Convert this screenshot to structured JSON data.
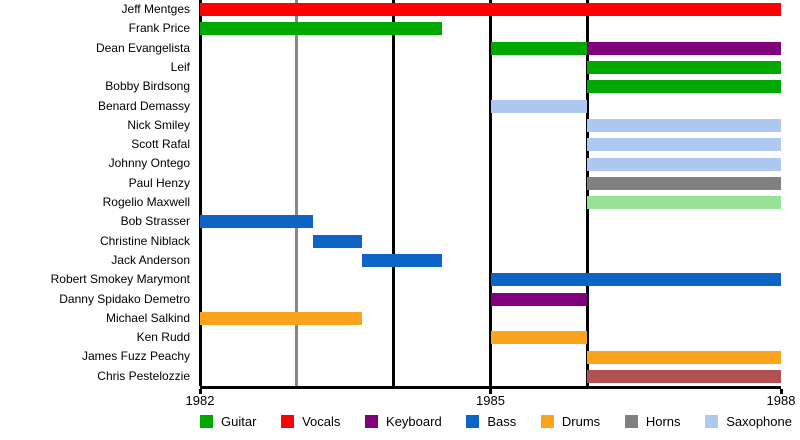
{
  "chart_data": {
    "type": "timeline",
    "description": "Band members timeline (Gantt-style) showing tenure per member colored by instrument",
    "x_axis": {
      "min": 1982,
      "max": 1988,
      "ticks": [
        1982,
        1985,
        1988
      ],
      "tick_labels": [
        "1982",
        "1985",
        "1988"
      ]
    },
    "gridlines": [
      {
        "year": 1982,
        "color": "#000000"
      },
      {
        "year": 1983,
        "color": "#878787"
      },
      {
        "year": 1984,
        "color": "#000000"
      },
      {
        "year": 1985,
        "color": "#000000"
      },
      {
        "year": 1986,
        "color": "#000000"
      }
    ],
    "legend_position": "bottom",
    "legend": [
      {
        "label": "Guitar",
        "color": "#00A800"
      },
      {
        "label": "Vocals",
        "color": "#FE0000"
      },
      {
        "label": "Keyboard",
        "color": "#800080"
      },
      {
        "label": "Bass",
        "color": "#0D63C6"
      },
      {
        "label": "Drums",
        "color": "#FAA41E"
      },
      {
        "label": "Horns",
        "color": "#808080"
      },
      {
        "label": "Saxophone",
        "color": "#ADC8F1"
      }
    ],
    "members": [
      {
        "name": "Jeff Mentges",
        "segments": [
          {
            "start": 1982,
            "end": 1988,
            "instrument": "Vocals",
            "color": "#FE0000"
          }
        ]
      },
      {
        "name": "Frank Price",
        "segments": [
          {
            "start": 1982,
            "end": 1984.5,
            "instrument": "Guitar",
            "color": "#00A800"
          }
        ]
      },
      {
        "name": "Dean Evangelista",
        "segments": [
          {
            "start": 1985,
            "end": 1986,
            "instrument": "Guitar",
            "color": "#00A800"
          },
          {
            "start": 1986,
            "end": 1988,
            "instrument": "Keyboard",
            "color": "#800080"
          }
        ]
      },
      {
        "name": "Leif",
        "segments": [
          {
            "start": 1986,
            "end": 1988,
            "instrument": "Guitar",
            "color": "#00A800"
          }
        ]
      },
      {
        "name": "Bobby Birdsong",
        "segments": [
          {
            "start": 1986,
            "end": 1988,
            "instrument": "Guitar",
            "color": "#00A800"
          }
        ]
      },
      {
        "name": "Benard Demassy",
        "segments": [
          {
            "start": 1985,
            "end": 1986,
            "instrument": "Saxophone",
            "color": "#ADC8F1"
          }
        ]
      },
      {
        "name": "Nick Smiley",
        "segments": [
          {
            "start": 1986,
            "end": 1988,
            "instrument": "Saxophone",
            "color": "#ADC8F1"
          }
        ]
      },
      {
        "name": "Scott Rafal",
        "segments": [
          {
            "start": 1986,
            "end": 1988,
            "instrument": "Saxophone",
            "color": "#ADC8F1"
          }
        ]
      },
      {
        "name": "Johnny Ontego",
        "segments": [
          {
            "start": 1986,
            "end": 1988,
            "instrument": "Saxophone",
            "color": "#ADC8F1"
          }
        ]
      },
      {
        "name": "Paul Henzy",
        "segments": [
          {
            "start": 1986,
            "end": 1988,
            "instrument": "Horns",
            "color": "#808080"
          }
        ]
      },
      {
        "name": "Rogelio Maxwell",
        "segments": [
          {
            "start": 1986,
            "end": 1988,
            "instrument": "",
            "color": "#97E297"
          }
        ]
      },
      {
        "name": "Bob Strasser",
        "segments": [
          {
            "start": 1982,
            "end": 1983.17,
            "instrument": "Bass",
            "color": "#0D63C6"
          }
        ]
      },
      {
        "name": "Christine Niblack",
        "segments": [
          {
            "start": 1983.17,
            "end": 1983.67,
            "instrument": "Bass",
            "color": "#0D63C6"
          }
        ]
      },
      {
        "name": "Jack Anderson",
        "segments": [
          {
            "start": 1983.67,
            "end": 1984.5,
            "instrument": "Bass",
            "color": "#0D63C6"
          }
        ]
      },
      {
        "name": "Robert Smokey Marymont",
        "segments": [
          {
            "start": 1985,
            "end": 1988,
            "instrument": "Bass",
            "color": "#0D63C6"
          }
        ]
      },
      {
        "name": "Danny Spidako Demetro",
        "segments": [
          {
            "start": 1985,
            "end": 1986,
            "instrument": "Keyboard",
            "color": "#800080"
          }
        ]
      },
      {
        "name": "Michael Salkind",
        "segments": [
          {
            "start": 1982,
            "end": 1983.67,
            "instrument": "Drums",
            "color": "#FAA41E"
          }
        ]
      },
      {
        "name": "Ken Rudd",
        "segments": [
          {
            "start": 1985,
            "end": 1986,
            "instrument": "Drums",
            "color": "#FAA41E"
          }
        ]
      },
      {
        "name": "James Fuzz Peachy",
        "segments": [
          {
            "start": 1986,
            "end": 1988,
            "instrument": "Drums",
            "color": "#FAA41E"
          }
        ]
      },
      {
        "name": "Chris Pestelozzie",
        "segments": [
          {
            "start": 1986,
            "end": 1988,
            "instrument": "",
            "color": "#AF5151"
          }
        ]
      }
    ]
  }
}
